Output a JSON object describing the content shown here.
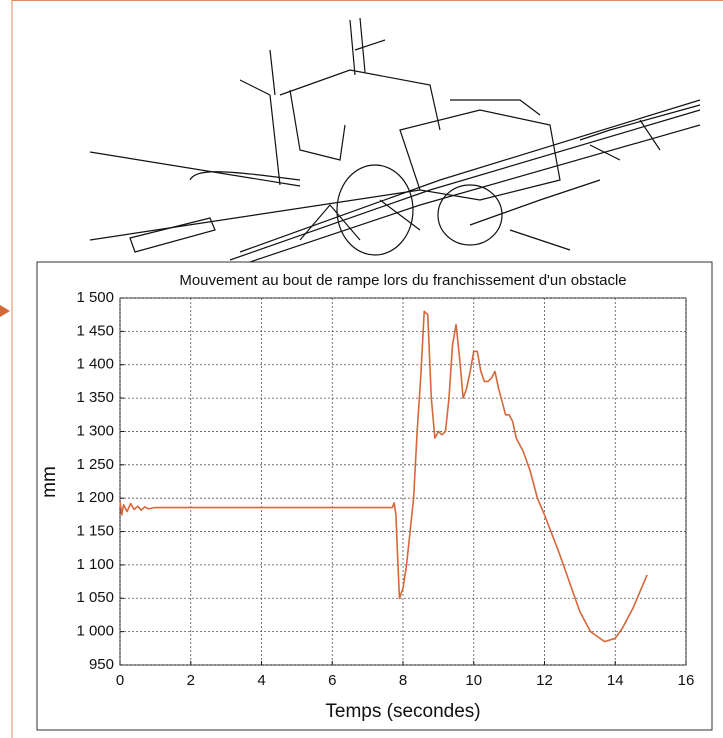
{
  "chart_data": {
    "type": "line",
    "title": "Mouvement au bout de rampe lors du franchissement d'un obstacle",
    "x_label": "Temps (secondes)",
    "y_label": "mm",
    "color": "#d4683a",
    "grid": true,
    "xlim": [
      0,
      16
    ],
    "xticks": [
      0,
      2,
      4,
      6,
      8,
      10,
      12,
      14,
      16
    ],
    "ylim": [
      950,
      1500
    ],
    "yticks": [
      950,
      {
        "value": 1000,
        "label": "1 000"
      },
      {
        "value": 1050,
        "label": "1 050"
      },
      {
        "value": 1100,
        "label": "1 100"
      },
      {
        "value": 1150,
        "label": "1 150"
      },
      {
        "value": 1200,
        "label": "1 200"
      },
      {
        "value": 1250,
        "label": "1 250"
      },
      {
        "value": 1300,
        "label": "1 300"
      },
      {
        "value": 1350,
        "label": "1 350"
      },
      {
        "value": 1400,
        "label": "1 400"
      },
      {
        "value": 1450,
        "label": "1 450"
      },
      {
        "value": 1500,
        "label": "1 500"
      }
    ],
    "x": [
      0,
      0.05,
      0.1,
      0.2,
      0.3,
      0.4,
      0.5,
      0.6,
      0.7,
      0.8,
      1.0,
      7.7,
      7.75,
      7.8,
      7.85,
      7.9,
      8.0,
      8.1,
      8.2,
      8.3,
      8.4,
      8.5,
      8.6,
      8.7,
      8.8,
      8.9,
      9.0,
      9.1,
      9.2,
      9.3,
      9.4,
      9.5,
      9.6,
      9.7,
      9.8,
      9.9,
      10.0,
      10.1,
      10.2,
      10.3,
      10.4,
      10.5,
      10.6,
      10.7,
      10.8,
      10.9,
      11.0,
      11.1,
      11.2,
      11.4,
      11.6,
      11.8,
      12.0,
      12.4,
      12.8,
      13.0,
      13.3,
      13.7,
      14.0,
      14.2,
      14.5,
      14.9
    ],
    "values": [
      1195,
      1175,
      1190,
      1180,
      1192,
      1183,
      1188,
      1182,
      1187,
      1184,
      1186,
      1186,
      1193,
      1175,
      1110,
      1050,
      1065,
      1100,
      1150,
      1200,
      1300,
      1380,
      1480,
      1475,
      1350,
      1290,
      1300,
      1295,
      1300,
      1350,
      1430,
      1460,
      1410,
      1350,
      1365,
      1390,
      1420,
      1420,
      1390,
      1375,
      1375,
      1380,
      1390,
      1365,
      1345,
      1325,
      1325,
      1315,
      1290,
      1270,
      1240,
      1200,
      1175,
      1120,
      1060,
      1030,
      1000,
      985,
      990,
      1005,
      1035,
      1085
    ]
  }
}
